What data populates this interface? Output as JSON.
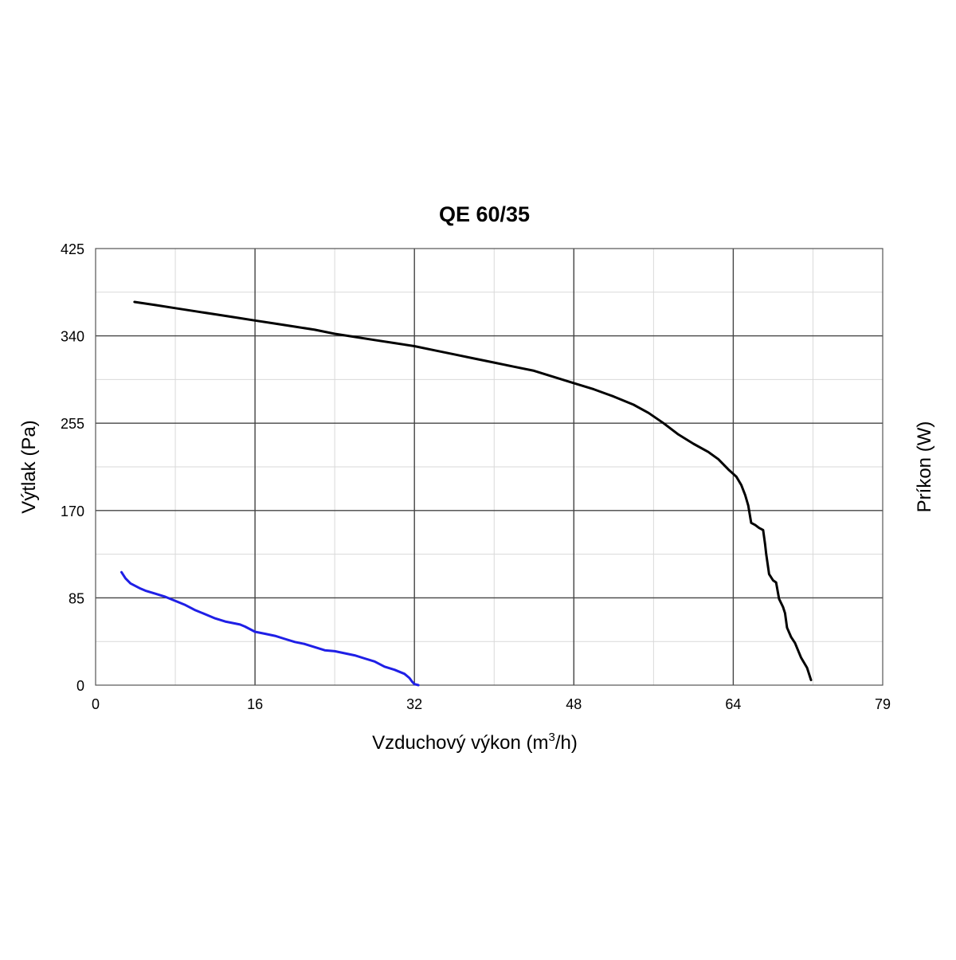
{
  "chart_data": {
    "type": "line",
    "title": "QE 60/35",
    "xlabel": "Vzduchový výkon (m",
    "xlabel_sup": "3",
    "xlabel_suffix": "/h)",
    "ylabel": "Výtlak (Pa)",
    "y2label": "Príkon (W)",
    "xlim": [
      0,
      79
    ],
    "ylim": [
      0,
      425
    ],
    "xticks": [
      0,
      16,
      32,
      48,
      64,
      79
    ],
    "yticks": [
      0,
      85,
      170,
      255,
      340,
      425
    ],
    "xtick_labels": [
      "0",
      "16",
      "32",
      "48",
      "64",
      "79"
    ],
    "ytick_labels": [
      "0",
      "85",
      "170",
      "255",
      "340",
      "425"
    ],
    "minor_x_step": 8,
    "minor_y_step": 42.5,
    "grid": true,
    "series": [
      {
        "color": "#000000",
        "x": [
          3.9,
          6,
          8,
          10,
          12,
          14,
          16,
          18,
          20,
          22,
          24,
          26,
          28,
          30,
          32,
          34,
          36,
          38,
          40,
          42,
          44,
          46,
          48,
          50,
          52,
          54,
          55.5,
          57,
          58.5,
          60,
          61.5,
          62.5,
          63.5,
          64.3,
          64.8,
          65.2,
          65.5,
          65.8,
          66.2,
          66.6,
          67,
          67.2,
          67.3,
          67.6,
          68,
          68.3,
          68.6,
          69,
          69.2,
          69.4,
          69.8,
          70.2,
          70.8,
          71.4,
          71.8
        ],
        "y": [
          373,
          370,
          367,
          364,
          361,
          358,
          355,
          352,
          349,
          346,
          342,
          339,
          336,
          333,
          330,
          326,
          322,
          318,
          314,
          310,
          306,
          300,
          294,
          288,
          281,
          273,
          265,
          255,
          244,
          235,
          227,
          220,
          210,
          203,
          195,
          185,
          175,
          158,
          156,
          153,
          151,
          137,
          128,
          108,
          102,
          100,
          84,
          76,
          70,
          56,
          47,
          41,
          27,
          17,
          5
        ]
      },
      {
        "color": "#1f1fe6",
        "x": [
          2.6,
          3,
          3.5,
          4.5,
          5,
          6,
          7,
          8,
          9,
          10,
          11,
          12,
          13,
          14,
          14.5,
          15,
          16,
          17,
          18,
          19,
          20,
          21,
          22,
          23,
          24,
          25,
          26,
          27,
          28,
          29,
          30,
          31,
          31.5,
          31.8,
          32,
          32.4
        ],
        "y": [
          110,
          104,
          99,
          94,
          92,
          89,
          86,
          82,
          78,
          73,
          69,
          65,
          62,
          60,
          59,
          57,
          52,
          50,
          48,
          45,
          42,
          40,
          37,
          34,
          33,
          31,
          29,
          26,
          23,
          18,
          15,
          11,
          7,
          3,
          1,
          0
        ]
      }
    ]
  }
}
